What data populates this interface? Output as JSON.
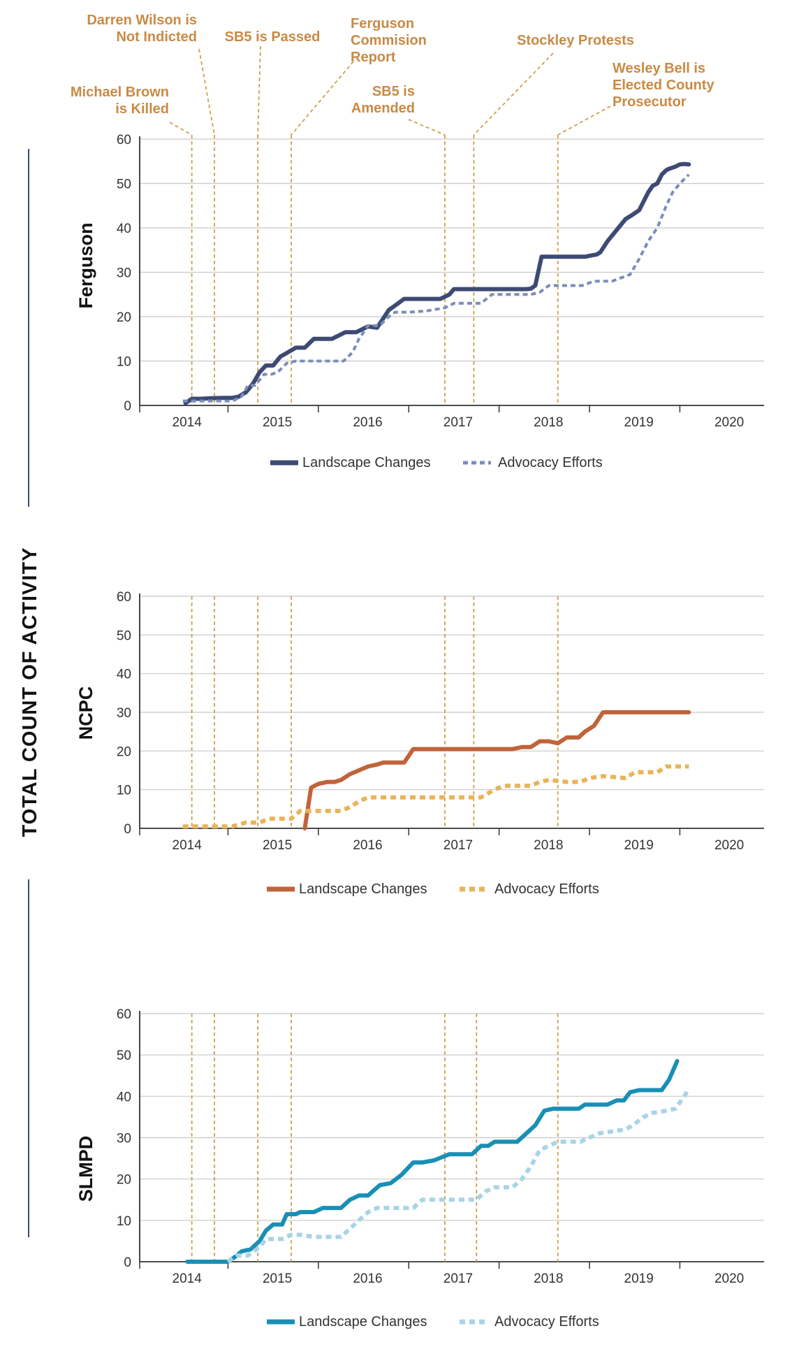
{
  "figure": {
    "ylabel": "TOTAL COUNT OF ACTIVITY",
    "event_color": "#c9a24a",
    "event_label_color": "#c98a44"
  },
  "chart_data": [
    {
      "type": "line",
      "panel": "Ferguson",
      "title": "Ferguson",
      "x_ticks": [
        "2014",
        "2015",
        "2016",
        "2017",
        "2018",
        "2019",
        "2020"
      ],
      "y_ticks": [
        0,
        10,
        20,
        30,
        40,
        50,
        60
      ],
      "xlim": [
        2013.5,
        2020.5
      ],
      "ylim": [
        0,
        60
      ],
      "grid": "horizontal",
      "legend_position": "bottom-center",
      "series": [
        {
          "name": "Landscape Changes",
          "color": "#3d4a73",
          "style": "solid",
          "x": [
            2014.03,
            2014.1,
            2014.2,
            2014.3,
            2014.45,
            2014.55,
            2014.62,
            2014.7,
            2014.78,
            2014.85,
            2014.92,
            2015.0,
            2015.08,
            2015.15,
            2015.25,
            2015.35,
            2015.45,
            2015.55,
            2015.65,
            2015.8,
            2015.88,
            2015.92,
            2016.05,
            2016.15,
            2016.28,
            2016.35,
            2016.45,
            2016.58,
            2016.7,
            2016.85,
            2016.95,
            2017.0,
            2017.1,
            2017.25,
            2017.55,
            2017.8,
            2017.85,
            2017.9,
            2017.97,
            2018.05,
            2018.3,
            2018.45,
            2018.52,
            2018.58,
            2018.62,
            2018.7,
            2018.8,
            2018.9,
            2018.98,
            2019.05,
            2019.15,
            2019.2,
            2019.25,
            2019.3,
            2019.35,
            2019.38,
            2019.45,
            2019.5,
            2019.55,
            2019.6
          ],
          "y": [
            0.5,
            1.5,
            1.5,
            1.6,
            1.7,
            1.7,
            2.0,
            3.0,
            5.0,
            7.5,
            9.0,
            9.0,
            11.0,
            11.8,
            13.0,
            13.0,
            15.0,
            15.0,
            15.0,
            16.5,
            16.5,
            16.5,
            17.8,
            17.5,
            21.5,
            22.5,
            24.0,
            24.0,
            24.0,
            24.0,
            25.0,
            26.2,
            26.2,
            26.2,
            26.2,
            26.2,
            26.3,
            27.0,
            33.5,
            33.5,
            33.5,
            33.5,
            33.8,
            34.0,
            34.5,
            37.0,
            39.5,
            42.0,
            43.0,
            44.0,
            48.0,
            49.5,
            50.0,
            52.0,
            53.0,
            53.3,
            53.8,
            54.3,
            54.4,
            54.3
          ]
        },
        {
          "name": "Advocacy Efforts",
          "color": "#7b8db8",
          "style": "dashed",
          "x": [
            2014.0,
            2014.2,
            2014.4,
            2014.55,
            2014.65,
            2014.72,
            2014.8,
            2014.9,
            2014.98,
            2015.05,
            2015.15,
            2015.25,
            2015.4,
            2015.6,
            2015.78,
            2015.88,
            2015.95,
            2016.05,
            2016.18,
            2016.28,
            2016.35,
            2016.5,
            2016.7,
            2016.9,
            2017.0,
            2017.15,
            2017.3,
            2017.42,
            2017.55,
            2017.7,
            2017.85,
            2017.95,
            2018.05,
            2018.2,
            2018.42,
            2018.55,
            2018.75,
            2018.95,
            2019.05,
            2019.15,
            2019.25,
            2019.35,
            2019.42,
            2019.5,
            2019.6
          ],
          "y": [
            1.0,
            1.0,
            1.0,
            1.0,
            2.0,
            4.5,
            4.5,
            7.0,
            7.0,
            7.5,
            9.5,
            10.0,
            10.0,
            10.0,
            10.0,
            12.0,
            15.0,
            18.0,
            18.0,
            20.0,
            21.0,
            21.0,
            21.3,
            22.0,
            23.0,
            23.0,
            23.0,
            25.0,
            25.0,
            25.0,
            25.0,
            25.5,
            27.0,
            27.0,
            27.0,
            28.0,
            28.0,
            29.5,
            33.0,
            37.0,
            40.0,
            45.0,
            48.0,
            50.0,
            52.0
          ]
        }
      ],
      "events": [
        {
          "name": "Michael Brown is Killed",
          "x": 2014.1,
          "label_lines": [
            "Michael Brown",
            "is Killed"
          ]
        },
        {
          "name": "Darren Wilson is Not Indicted",
          "x": 2014.35,
          "label_lines": [
            "Darren Wilson is",
            "Not Indicted"
          ]
        },
        {
          "name": "SB5 is Passed",
          "x": 2014.83,
          "label_lines": [
            "SB5 is Passed"
          ]
        },
        {
          "name": "Ferguson Commision Report",
          "x": 2015.2,
          "label_lines": [
            "Ferguson",
            "Commision",
            "Report"
          ]
        },
        {
          "name": "SB5 is Amended",
          "x": 2016.9,
          "label_lines": [
            "SB5 is",
            "Amended"
          ]
        },
        {
          "name": "Stockley Protests",
          "x": 2017.22,
          "label_lines": [
            "Stockley Protests"
          ]
        },
        {
          "name": "Wesley Bell is Elected County Prosecutor",
          "x": 2018.15,
          "label_lines": [
            "Wesley Bell is",
            "Elected County",
            "Prosecutor"
          ]
        }
      ]
    },
    {
      "type": "line",
      "panel": "NCPC",
      "title": "NCPC",
      "x_ticks": [
        "2014",
        "2015",
        "2016",
        "2017",
        "2018",
        "2019",
        "2020"
      ],
      "y_ticks": [
        0,
        10,
        20,
        30,
        40,
        50,
        60
      ],
      "xlim": [
        2013.5,
        2020.5
      ],
      "ylim": [
        0,
        60
      ],
      "grid": "horizontal",
      "legend_position": "bottom-center",
      "series": [
        {
          "name": "Landscape Changes",
          "color": "#c0643a",
          "style": "solid",
          "x": [
            2015.35,
            2015.42,
            2015.5,
            2015.6,
            2015.68,
            2015.75,
            2015.85,
            2015.95,
            2016.05,
            2016.15,
            2016.22,
            2016.32,
            2016.45,
            2016.55,
            2016.7,
            2016.85,
            2017.0,
            2017.15,
            2017.3,
            2017.45,
            2017.55,
            2017.65,
            2017.75,
            2017.85,
            2017.95,
            2018.05,
            2018.15,
            2018.25,
            2018.38,
            2018.45,
            2018.55,
            2018.65,
            2018.75,
            2018.85,
            2019.0,
            2019.2,
            2019.4,
            2019.6
          ],
          "y": [
            0.0,
            10.5,
            11.5,
            12.0,
            12.0,
            12.5,
            14.0,
            15.0,
            16.0,
            16.5,
            17.0,
            17.0,
            17.0,
            20.5,
            20.5,
            20.5,
            20.5,
            20.5,
            20.5,
            20.5,
            20.5,
            20.5,
            21.0,
            21.0,
            22.5,
            22.5,
            22.0,
            23.5,
            23.5,
            25.0,
            26.5,
            30.0,
            30.0,
            30.0,
            30.0,
            30.0,
            30.0,
            30.0
          ]
        },
        {
          "name": "Advocacy Efforts",
          "color": "#e8b45a",
          "style": "dashed",
          "x": [
            2014.0,
            2014.2,
            2014.45,
            2014.55,
            2014.7,
            2014.85,
            2014.95,
            2015.05,
            2015.2,
            2015.3,
            2015.4,
            2015.55,
            2015.75,
            2015.85,
            2015.95,
            2016.05,
            2016.2,
            2016.4,
            2016.6,
            2016.8,
            2017.0,
            2017.2,
            2017.3,
            2017.45,
            2017.55,
            2017.7,
            2017.85,
            2017.95,
            2018.05,
            2018.25,
            2018.4,
            2018.5,
            2018.65,
            2018.9,
            2019.0,
            2019.25,
            2019.35,
            2019.45,
            2019.6
          ],
          "y": [
            0.5,
            0.5,
            0.5,
            0.5,
            1.5,
            1.5,
            2.5,
            2.5,
            2.5,
            4.5,
            4.5,
            4.5,
            4.5,
            5.5,
            7.0,
            8.0,
            8.0,
            8.0,
            8.0,
            8.0,
            8.0,
            8.0,
            8.0,
            10.0,
            11.0,
            11.0,
            11.0,
            12.0,
            12.5,
            12.0,
            12.0,
            13.0,
            13.5,
            13.0,
            14.5,
            14.5,
            16.0,
            16.0,
            16.0
          ]
        }
      ],
      "events": [
        {
          "x": 2014.1
        },
        {
          "x": 2014.35
        },
        {
          "x": 2014.83
        },
        {
          "x": 2015.2
        },
        {
          "x": 2016.9
        },
        {
          "x": 2017.22
        },
        {
          "x": 2018.15
        }
      ]
    },
    {
      "type": "line",
      "panel": "SLMPD",
      "title": "SLMPD",
      "x_ticks": [
        "2014",
        "2015",
        "2016",
        "2017",
        "2018",
        "2019",
        "2020"
      ],
      "y_ticks": [
        0,
        10,
        20,
        30,
        40,
        50,
        60
      ],
      "xlim": [
        2013.5,
        2020.5
      ],
      "ylim": [
        0,
        60
      ],
      "grid": "horizontal",
      "legend_position": "bottom-center",
      "series": [
        {
          "name": "Landscape Changes",
          "color": "#1a8fb5",
          "style": "solid",
          "x": [
            2014.05,
            2014.3,
            2014.5,
            2014.6,
            2014.65,
            2014.75,
            2014.85,
            2014.92,
            2015.0,
            2015.1,
            2015.15,
            2015.25,
            2015.3,
            2015.45,
            2015.55,
            2015.75,
            2015.85,
            2015.95,
            2016.05,
            2016.18,
            2016.3,
            2016.42,
            2016.55,
            2016.65,
            2016.78,
            2016.95,
            2017.2,
            2017.3,
            2017.38,
            2017.45,
            2017.7,
            2017.8,
            2017.9,
            2018.0,
            2018.1,
            2018.25,
            2018.38,
            2018.45,
            2018.55,
            2018.7,
            2018.8,
            2018.88,
            2018.95,
            2019.05,
            2019.15,
            2019.3,
            2019.38,
            2019.47
          ],
          "y": [
            0.0,
            0.0,
            0.0,
            1.5,
            2.5,
            3.0,
            5.0,
            7.5,
            9.0,
            9.0,
            11.5,
            11.5,
            12.0,
            12.0,
            13.0,
            13.0,
            15.0,
            16.0,
            16.0,
            18.5,
            19.0,
            21.0,
            24.0,
            24.0,
            24.5,
            26.0,
            26.0,
            28.0,
            28.0,
            29.0,
            29.0,
            31.0,
            33.0,
            36.5,
            37.0,
            37.0,
            37.0,
            38.0,
            38.0,
            38.0,
            39.0,
            39.0,
            41.0,
            41.5,
            41.5,
            41.5,
            44.0,
            48.5
          ]
        },
        {
          "name": "Advocacy Efforts",
          "color": "#a9d4e6",
          "style": "dashed",
          "x": [
            2014.5,
            2014.6,
            2014.72,
            2014.85,
            2014.92,
            2015.0,
            2015.1,
            2015.2,
            2015.3,
            2015.45,
            2015.6,
            2015.75,
            2015.85,
            2015.95,
            2016.05,
            2016.15,
            2016.3,
            2016.55,
            2016.65,
            2016.8,
            2017.0,
            2017.25,
            2017.35,
            2017.45,
            2017.65,
            2017.75,
            2017.85,
            2017.95,
            2018.05,
            2018.15,
            2018.4,
            2018.5,
            2018.6,
            2018.75,
            2018.9,
            2018.98,
            2019.1,
            2019.2,
            2019.35,
            2019.45,
            2019.55,
            2019.6
          ],
          "y": [
            0.0,
            1.5,
            1.5,
            3.5,
            5.5,
            5.5,
            5.5,
            6.5,
            6.5,
            6.0,
            6.0,
            6.0,
            8.0,
            10.0,
            12.0,
            13.0,
            13.0,
            13.0,
            15.0,
            15.0,
            15.0,
            15.0,
            17.0,
            18.0,
            18.0,
            20.0,
            23.0,
            27.0,
            28.0,
            29.0,
            29.0,
            30.0,
            31.0,
            31.5,
            32.0,
            33.0,
            35.0,
            36.0,
            36.5,
            37.0,
            40.0,
            42.0
          ]
        }
      ],
      "events": [
        {
          "x": 2014.1
        },
        {
          "x": 2014.35
        },
        {
          "x": 2014.83
        },
        {
          "x": 2015.2
        },
        {
          "x": 2016.9
        },
        {
          "x": 2017.25
        },
        {
          "x": 2018.15
        }
      ]
    }
  ]
}
